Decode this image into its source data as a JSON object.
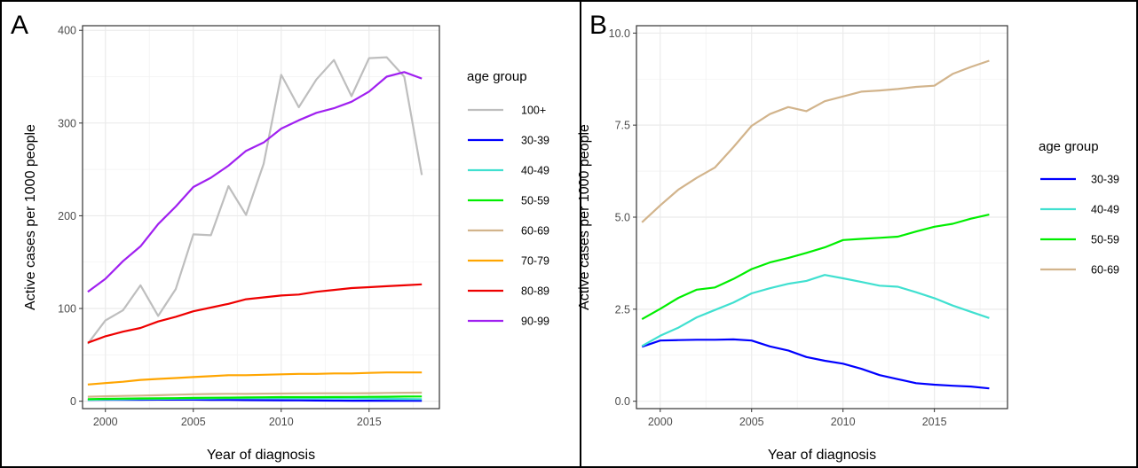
{
  "chart_data": [
    {
      "panel": "A",
      "type": "line",
      "xlabel": "Year of diagnosis",
      "ylabel": "Active cases per 1000 people",
      "xlim": [
        1998.7,
        2019.0
      ],
      "ylim": [
        -8,
        405
      ],
      "xticks": [
        2000,
        2005,
        2010,
        2015
      ],
      "yticks": [
        0,
        100,
        200,
        300,
        400
      ],
      "ytick_labels": [
        "0",
        "100",
        "200",
        "300",
        "400"
      ],
      "legend_title": "age group",
      "legend_position": "right",
      "grid": true,
      "x": [
        1999,
        2000,
        2001,
        2002,
        2003,
        2004,
        2005,
        2006,
        2007,
        2008,
        2009,
        2010,
        2011,
        2012,
        2013,
        2014,
        2015,
        2016,
        2017,
        2018
      ],
      "series": [
        {
          "name": "100+",
          "color": "#bebebe",
          "values": [
            62,
            87,
            98,
            125,
            92,
            121,
            180,
            179,
            232,
            201,
            256,
            352,
            317,
            347,
            368,
            329,
            370,
            371,
            350,
            244
          ]
        },
        {
          "name": "30-39",
          "color": "#0000ff",
          "values": [
            1.5,
            1.6,
            1.6,
            1.6,
            1.7,
            1.7,
            1.7,
            1.5,
            1.4,
            1.2,
            1.1,
            1.0,
            0.9,
            0.7,
            0.6,
            0.5,
            0.5,
            0.4,
            0.4,
            0.4
          ]
        },
        {
          "name": "40-49",
          "color": "#40e0d0",
          "values": [
            1.5,
            1.8,
            2.0,
            2.3,
            2.5,
            2.7,
            2.9,
            3.0,
            3.2,
            3.3,
            3.4,
            3.3,
            3.2,
            3.1,
            3.1,
            3.0,
            2.8,
            2.6,
            2.4,
            2.2
          ]
        },
        {
          "name": "50-59",
          "color": "#00ee00",
          "values": [
            2.2,
            2.5,
            2.8,
            3.0,
            3.1,
            3.3,
            3.6,
            3.8,
            3.9,
            4.0,
            4.2,
            4.4,
            4.4,
            4.4,
            4.5,
            4.6,
            4.7,
            4.8,
            5.0,
            5.1
          ]
        },
        {
          "name": "60-69",
          "color": "#d2b48c",
          "values": [
            4.8,
            5.3,
            5.7,
            6.1,
            6.4,
            7.0,
            7.5,
            7.8,
            8.0,
            7.9,
            8.2,
            8.3,
            8.4,
            8.5,
            8.5,
            8.5,
            8.6,
            8.9,
            9.1,
            9.2
          ]
        },
        {
          "name": "70-79",
          "color": "#ffa500",
          "values": [
            18,
            19.5,
            21,
            23,
            24,
            25,
            26,
            27,
            28,
            28,
            28.5,
            29,
            29.5,
            29.5,
            30,
            30,
            30.5,
            31,
            31,
            31
          ]
        },
        {
          "name": "80-89",
          "color": "#ee0000",
          "values": [
            63,
            70,
            75,
            79,
            86,
            91,
            97,
            101,
            105,
            110,
            112,
            114,
            115,
            118,
            120,
            122,
            123,
            124,
            125,
            126
          ]
        },
        {
          "name": "90-99",
          "color": "#a020f0",
          "values": [
            118,
            132,
            151,
            167,
            191,
            210,
            231,
            241,
            254,
            270,
            279,
            294,
            303,
            311,
            316,
            323,
            334,
            350,
            355,
            348
          ]
        }
      ]
    },
    {
      "panel": "B",
      "type": "line",
      "xlabel": "Year of diagnosis",
      "ylabel": "Active cases per 1000 people",
      "xlim": [
        1998.7,
        2019.0
      ],
      "ylim": [
        -0.2,
        10.2
      ],
      "xticks": [
        2000,
        2005,
        2010,
        2015
      ],
      "yticks": [
        0,
        2.5,
        5,
        7.5,
        10
      ],
      "ytick_labels": [
        "0.0",
        "2.5",
        "5.0",
        "7.5",
        "10.0"
      ],
      "legend_title": "age group",
      "legend_position": "right",
      "grid": true,
      "x": [
        1999,
        2000,
        2001,
        2002,
        2003,
        2004,
        2005,
        2006,
        2007,
        2008,
        2009,
        2010,
        2011,
        2012,
        2013,
        2014,
        2015,
        2016,
        2017,
        2018
      ],
      "series": [
        {
          "name": "30-39",
          "color": "#0000ff",
          "values": [
            1.48,
            1.65,
            1.66,
            1.67,
            1.67,
            1.68,
            1.65,
            1.49,
            1.38,
            1.2,
            1.1,
            1.02,
            0.88,
            0.71,
            0.6,
            0.49,
            0.45,
            0.42,
            0.4,
            0.35
          ]
        },
        {
          "name": "40-49",
          "color": "#40e0d0",
          "values": [
            1.5,
            1.78,
            2.0,
            2.28,
            2.48,
            2.68,
            2.93,
            3.07,
            3.19,
            3.27,
            3.43,
            3.34,
            3.24,
            3.14,
            3.11,
            2.96,
            2.8,
            2.6,
            2.43,
            2.26
          ]
        },
        {
          "name": "50-59",
          "color": "#00ee00",
          "values": [
            2.23,
            2.51,
            2.81,
            3.03,
            3.09,
            3.32,
            3.59,
            3.77,
            3.89,
            4.03,
            4.18,
            4.38,
            4.41,
            4.44,
            4.47,
            4.61,
            4.74,
            4.82,
            4.96,
            5.07
          ]
        },
        {
          "name": "60-69",
          "color": "#d2b48c",
          "values": [
            4.86,
            5.32,
            5.75,
            6.07,
            6.35,
            6.9,
            7.48,
            7.8,
            7.99,
            7.88,
            8.15,
            8.28,
            8.41,
            8.44,
            8.48,
            8.54,
            8.57,
            8.89,
            9.08,
            9.25
          ]
        }
      ]
    }
  ]
}
